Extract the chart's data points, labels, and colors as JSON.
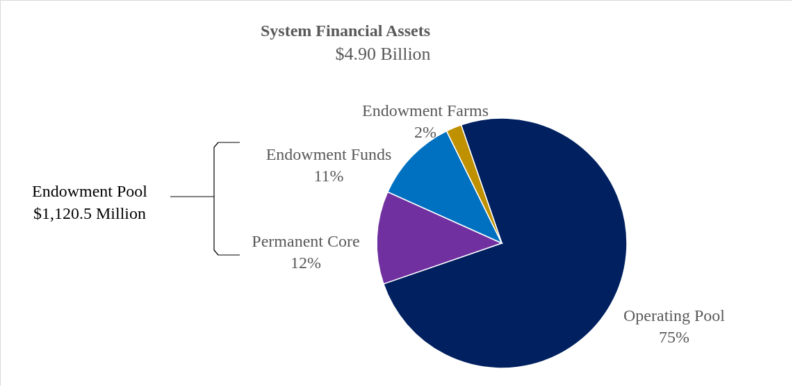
{
  "chart_data": {
    "type": "pie",
    "title": "System Financial Assets",
    "subtitle": "$4.90 Billion",
    "categories": [
      "Operating Pool",
      "Permanent Core",
      "Endowment Funds",
      "Endowment Farms"
    ],
    "values": [
      75,
      12,
      11,
      2
    ],
    "colors": [
      "#002060",
      "#7030a0",
      "#0070c0",
      "#bf9000"
    ],
    "value_labels": [
      "75%",
      "12%",
      "11%",
      "2%"
    ],
    "annotations": [
      "Endowment Pool",
      "$1,120.5 Million"
    ],
    "legend": false
  }
}
